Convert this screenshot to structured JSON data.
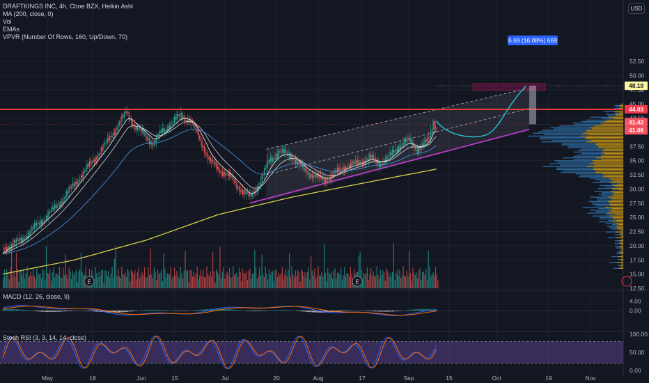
{
  "legend": {
    "title": "DRAFTKINGS INC, 4h, Cboe BZX, Heikin Ashi",
    "lines": [
      "MA (200, close, 0)",
      "Vol",
      "EMAs",
      "VPVR (Number Of Rows, 160, Up/Down, 70)"
    ]
  },
  "currency": "USD",
  "panels": {
    "macd_label": "MACD (12, 26, close, 9)",
    "stoch_label": "Stoch RSI (3, 3, 14, 14, close)"
  },
  "callout": "6.69 (16.08%) 669",
  "earnings_marker": "E",
  "price_axis": {
    "ticks": [
      "52.50",
      "50.00",
      "47.50",
      "45.00",
      "42.50",
      "40.00",
      "37.50",
      "35.00",
      "32.50",
      "30.00",
      "27.50",
      "25.00",
      "22.50",
      "20.00",
      "17.50",
      "15.00",
      "12.50"
    ],
    "labels": [
      {
        "text": "48.19",
        "value": 48.19,
        "color": "#fff59d",
        "textcolor": "#131722"
      },
      {
        "text": "44.03",
        "value": 44.03,
        "color": "#f23645",
        "textcolor": "#ffffff"
      },
      {
        "text": "41.42",
        "value": 41.42,
        "color": "#f7525f",
        "textcolor": "#ffffff"
      },
      {
        "text": "41.06",
        "value": 41.06,
        "color": "#f7525f",
        "textcolor": "#ffffff"
      }
    ]
  },
  "macd_axis": [
    "4.00",
    "0.00"
  ],
  "stoch_axis": [
    "100.00",
    "50.00",
    "0.00"
  ],
  "time_axis": [
    "May",
    "18",
    "Jun",
    "15",
    "Jul",
    "20",
    "Aug",
    "17",
    "Sep",
    "15",
    "Oct",
    "19",
    "Nov"
  ],
  "colors": {
    "up": "#26a69a",
    "down": "#ef5350",
    "ma200": "#d8d04a",
    "resistance": "#e53935",
    "trendline": "#c33ed2"
  },
  "chart_data": {
    "type": "candlestick",
    "title": "DRAFTKINGS INC, 4h, Cboe BZX, Heikin Ashi",
    "ylim": [
      12.5,
      53.5
    ],
    "price_path": [
      [
        0,
        19.5
      ],
      [
        15,
        21
      ],
      [
        30,
        24
      ],
      [
        45,
        27
      ],
      [
        60,
        31
      ],
      [
        75,
        35
      ],
      [
        86,
        38
      ],
      [
        95,
        41
      ],
      [
        103,
        43.5
      ],
      [
        110,
        41
      ],
      [
        118,
        39.5
      ],
      [
        125,
        38
      ],
      [
        132,
        40
      ],
      [
        140,
        41.5
      ],
      [
        148,
        43
      ],
      [
        156,
        42
      ],
      [
        164,
        39
      ],
      [
        172,
        35
      ],
      [
        180,
        33.5
      ],
      [
        190,
        32
      ],
      [
        200,
        29.5
      ],
      [
        206,
        28.5
      ],
      [
        214,
        31
      ],
      [
        222,
        35
      ],
      [
        230,
        36.5
      ],
      [
        240,
        36
      ],
      [
        250,
        33.5
      ],
      [
        258,
        32.5
      ],
      [
        268,
        31.5
      ],
      [
        276,
        32.5
      ],
      [
        286,
        34
      ],
      [
        296,
        34.5
      ],
      [
        306,
        35.5
      ],
      [
        314,
        34.5
      ],
      [
        322,
        35.5
      ],
      [
        332,
        38
      ],
      [
        338,
        38.5
      ],
      [
        346,
        37
      ],
      [
        352,
        38
      ],
      [
        356,
        39
      ],
      [
        359,
        42
      ],
      [
        362,
        40.5
      ]
    ],
    "ma200": [
      [
        0,
        15
      ],
      [
        60,
        17.5
      ],
      [
        120,
        21
      ],
      [
        180,
        25.5
      ],
      [
        240,
        28.5
      ],
      [
        300,
        31
      ],
      [
        362,
        33.5
      ]
    ],
    "resistance": 44.03,
    "channel_support": {
      "from": [
        206,
        27.5
      ],
      "to": [
        420,
        40.5
      ]
    },
    "target_zone": [
      47.4,
      48.6
    ],
    "projection_target": 48.19
  }
}
